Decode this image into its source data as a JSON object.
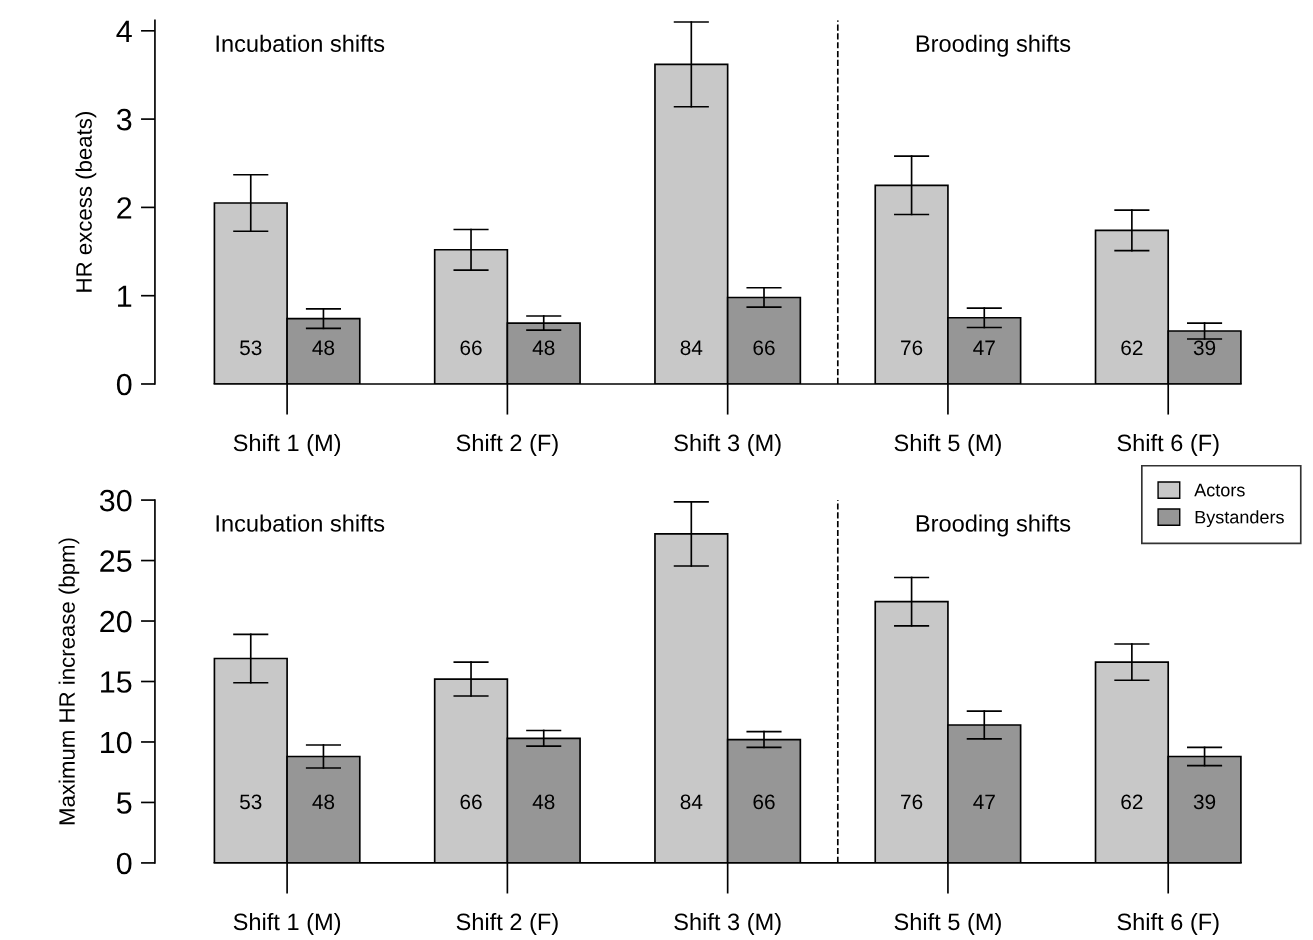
{
  "chart_data": [
    {
      "type": "bar",
      "ylabel": "HR excess (beats)",
      "categories": [
        "Shift 1 (M)",
        "Shift 2 (F)",
        "Shift 3 (M)",
        "Shift 5 (M)",
        "Shift 6 (F)"
      ],
      "ylim": [
        0,
        4.12
      ],
      "yticks": [
        0,
        1,
        2,
        3,
        4
      ],
      "grid": false,
      "legend": "bottom right",
      "series": [
        {
          "name": "Actors",
          "color": "#c8c8c8",
          "values": [
            2.05,
            1.52,
            3.62,
            2.25,
            1.74
          ],
          "errors": [
            0.32,
            0.23,
            0.48,
            0.33,
            0.23
          ]
        },
        {
          "name": "Bystanders",
          "color": "#969696",
          "values": [
            0.74,
            0.69,
            0.98,
            0.75,
            0.6
          ],
          "errors": [
            0.11,
            0.08,
            0.11,
            0.11,
            0.09
          ]
        }
      ],
      "annotations": [
        "Incubation shifts",
        "Brooding shifts",
        {
          "text": "53",
          "x": "Shift 1 (M)",
          "y": 0.39
        },
        {
          "text": "48",
          "x": "Shift 1 (M)",
          "y": 0.39
        },
        {
          "text": "66",
          "x": "Shift 2 (F)",
          "y": 0.39
        },
        {
          "text": "48",
          "x": "Shift 2 (F)",
          "y": 0.39
        },
        {
          "text": "84",
          "x": "Shift 3 (M)",
          "y": 0.39
        },
        {
          "text": "66",
          "x": "Shift 3 (M)",
          "y": 0.39
        },
        {
          "text": "76",
          "x": "Shift 5 (M)",
          "y": 0.39
        },
        {
          "text": "47",
          "x": "Shift 5 (M)",
          "y": 0.39
        },
        {
          "text": "62",
          "x": "Shift 6 (F)",
          "y": 0.39
        },
        {
          "text": "39",
          "x": "Shift 6 (F)",
          "y": 0.39
        }
      ]
    },
    {
      "type": "bar",
      "ylabel": "Maximum HR increase (bpm)",
      "categories": [
        "Shift 1 (M)",
        "Shift 2 (F)",
        "Shift 3 (M)",
        "Shift 5 (M)",
        "Shift 6 (F)"
      ],
      "ylim": [
        0,
        30
      ],
      "yticks": [
        0,
        5,
        10,
        15,
        20,
        25,
        30
      ],
      "grid": false,
      "series": [
        {
          "color": "#c8c8c8",
          "values": [
            16.9,
            15.2,
            27.2,
            21.6,
            16.6
          ],
          "errors": [
            2.0,
            1.4,
            2.65,
            2.0,
            1.5
          ]
        },
        {
          "color": "#969696",
          "values": [
            8.8,
            10.3,
            10.2,
            11.4,
            8.8
          ],
          "errors": [
            0.95,
            0.65,
            0.65,
            1.15,
            0.75
          ]
        }
      ],
      "annotations": [
        "Incubation shifts",
        "Brooding shifts",
        {
          "text": "53",
          "x": "Shift 1 (M)",
          "y": 4.9
        },
        {
          "text": "48",
          "x": "Shift 1 (M)",
          "y": 4.9
        },
        {
          "text": "66",
          "x": "Shift 2 (F)",
          "y": 4.9
        },
        {
          "text": "48",
          "x": "Shift 2 (F)",
          "y": 4.9
        },
        {
          "text": "84",
          "x": "Shift 3 (M)",
          "y": 4.9
        },
        {
          "text": "66",
          "x": "Shift 3 (M)",
          "y": 4.9
        },
        {
          "text": "76",
          "x": "Shift 5 (M)",
          "y": 4.9
        },
        {
          "text": "47",
          "x": "Shift 5 (M)",
          "y": 4.9
        },
        {
          "text": "62",
          "x": "Shift 6 (F)",
          "y": 4.9
        },
        {
          "text": "39",
          "x": "Shift 6 (F)",
          "y": 4.9
        }
      ]
    }
  ]
}
